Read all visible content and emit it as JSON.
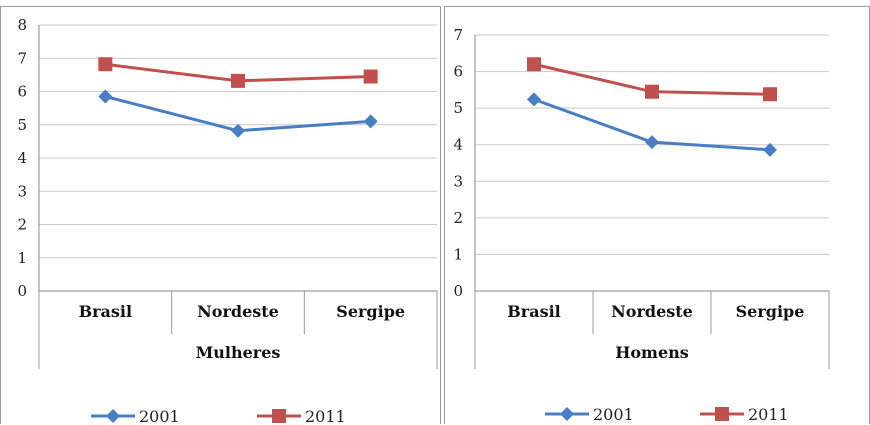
{
  "chart_data": [
    {
      "type": "line",
      "group_label": "Mulheres",
      "categories": [
        "Brasil",
        "Nordeste",
        "Sergipe"
      ],
      "ylim": [
        0,
        8
      ],
      "y_ticks": [
        "0",
        "1",
        "2",
        "3",
        "4",
        "5",
        "6",
        "7",
        "8"
      ],
      "grid": true,
      "legend": "bottom",
      "series": [
        {
          "name": "2001",
          "values": [
            5.85,
            4.82,
            5.1
          ],
          "color": "#4a7ec4",
          "marker": "diamond"
        },
        {
          "name": "2011",
          "values": [
            6.82,
            6.32,
            6.45
          ],
          "color": "#c0504d",
          "marker": "square"
        }
      ]
    },
    {
      "type": "line",
      "group_label": "Homens",
      "categories": [
        "Brasil",
        "Nordeste",
        "Sergipe"
      ],
      "ylim": [
        0,
        7
      ],
      "y_ticks": [
        "0",
        "1",
        "2",
        "3",
        "4",
        "5",
        "6",
        "7"
      ],
      "grid": true,
      "legend": "bottom",
      "series": [
        {
          "name": "2001",
          "values": [
            5.24,
            4.07,
            3.86
          ],
          "color": "#4a7ec4",
          "marker": "diamond"
        },
        {
          "name": "2011",
          "values": [
            6.2,
            5.45,
            5.38
          ],
          "color": "#c0504d",
          "marker": "square"
        }
      ]
    }
  ]
}
